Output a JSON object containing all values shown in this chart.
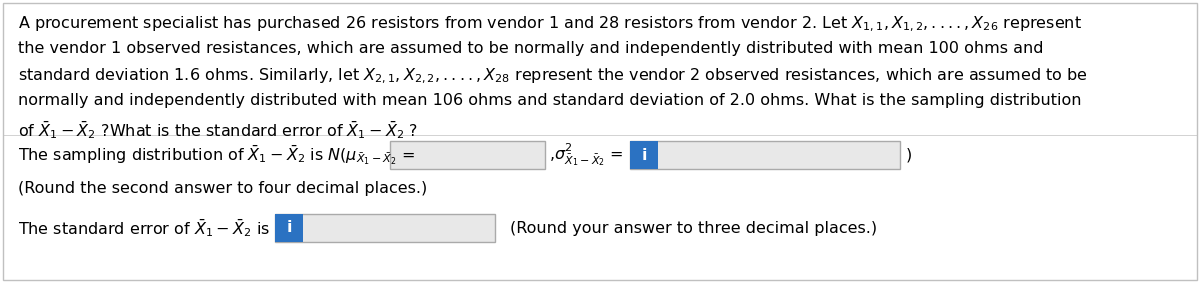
{
  "bg_color": "#ffffff",
  "border_color": "#c0c0c0",
  "para_lines": [
    "A procurement specialist has purchased 26 resistors from vendor 1 and 28 resistors from vendor 2. Let $X_{1,1}, X_{1,2},....,X_{26}$ represent",
    "the vendor 1 observed resistances, which are assumed to be normally and independently distributed with mean 100 ohms and",
    "standard deviation 1.6 ohms. Similarly, let $X_{2,1}, X_{2,2},....,X_{28}$ represent the vendor 2 observed resistances, which are assumed to be",
    "normally and independently distributed with mean 106 ohms and standard deviation of 2.0 ohms. What is the sampling distribution",
    "of $\\bar{X}_1 - \\bar{X}_2$ ?What is the standard error of $\\bar{X}_1 - \\bar{X}_2$ ?"
  ],
  "row1_prefix": "The sampling distribution of $\\bar{X}_1 - \\bar{X}_2$ is $N(\\mu_{\\bar{X}_1-\\bar{X}_2}$ =",
  "row1_mid": ",$\\sigma^2_{\\bar{X}_1-\\bar{X}_2}$ =",
  "row1_close": ")",
  "row2_text": "(Round the second answer to four decimal places.)",
  "row3_prefix": "The standard error of $\\bar{X}_1 - \\bar{X}_2$ is",
  "row3_suffix": "(Round your answer to three decimal places.)",
  "input_box_color": "#e8e8e8",
  "input_box_border": "#aaaaaa",
  "highlight_color": "#2b72c2",
  "highlight_text_color": "#ffffff",
  "highlight_char": "i",
  "font_size": 11.5,
  "text_color": "#000000"
}
